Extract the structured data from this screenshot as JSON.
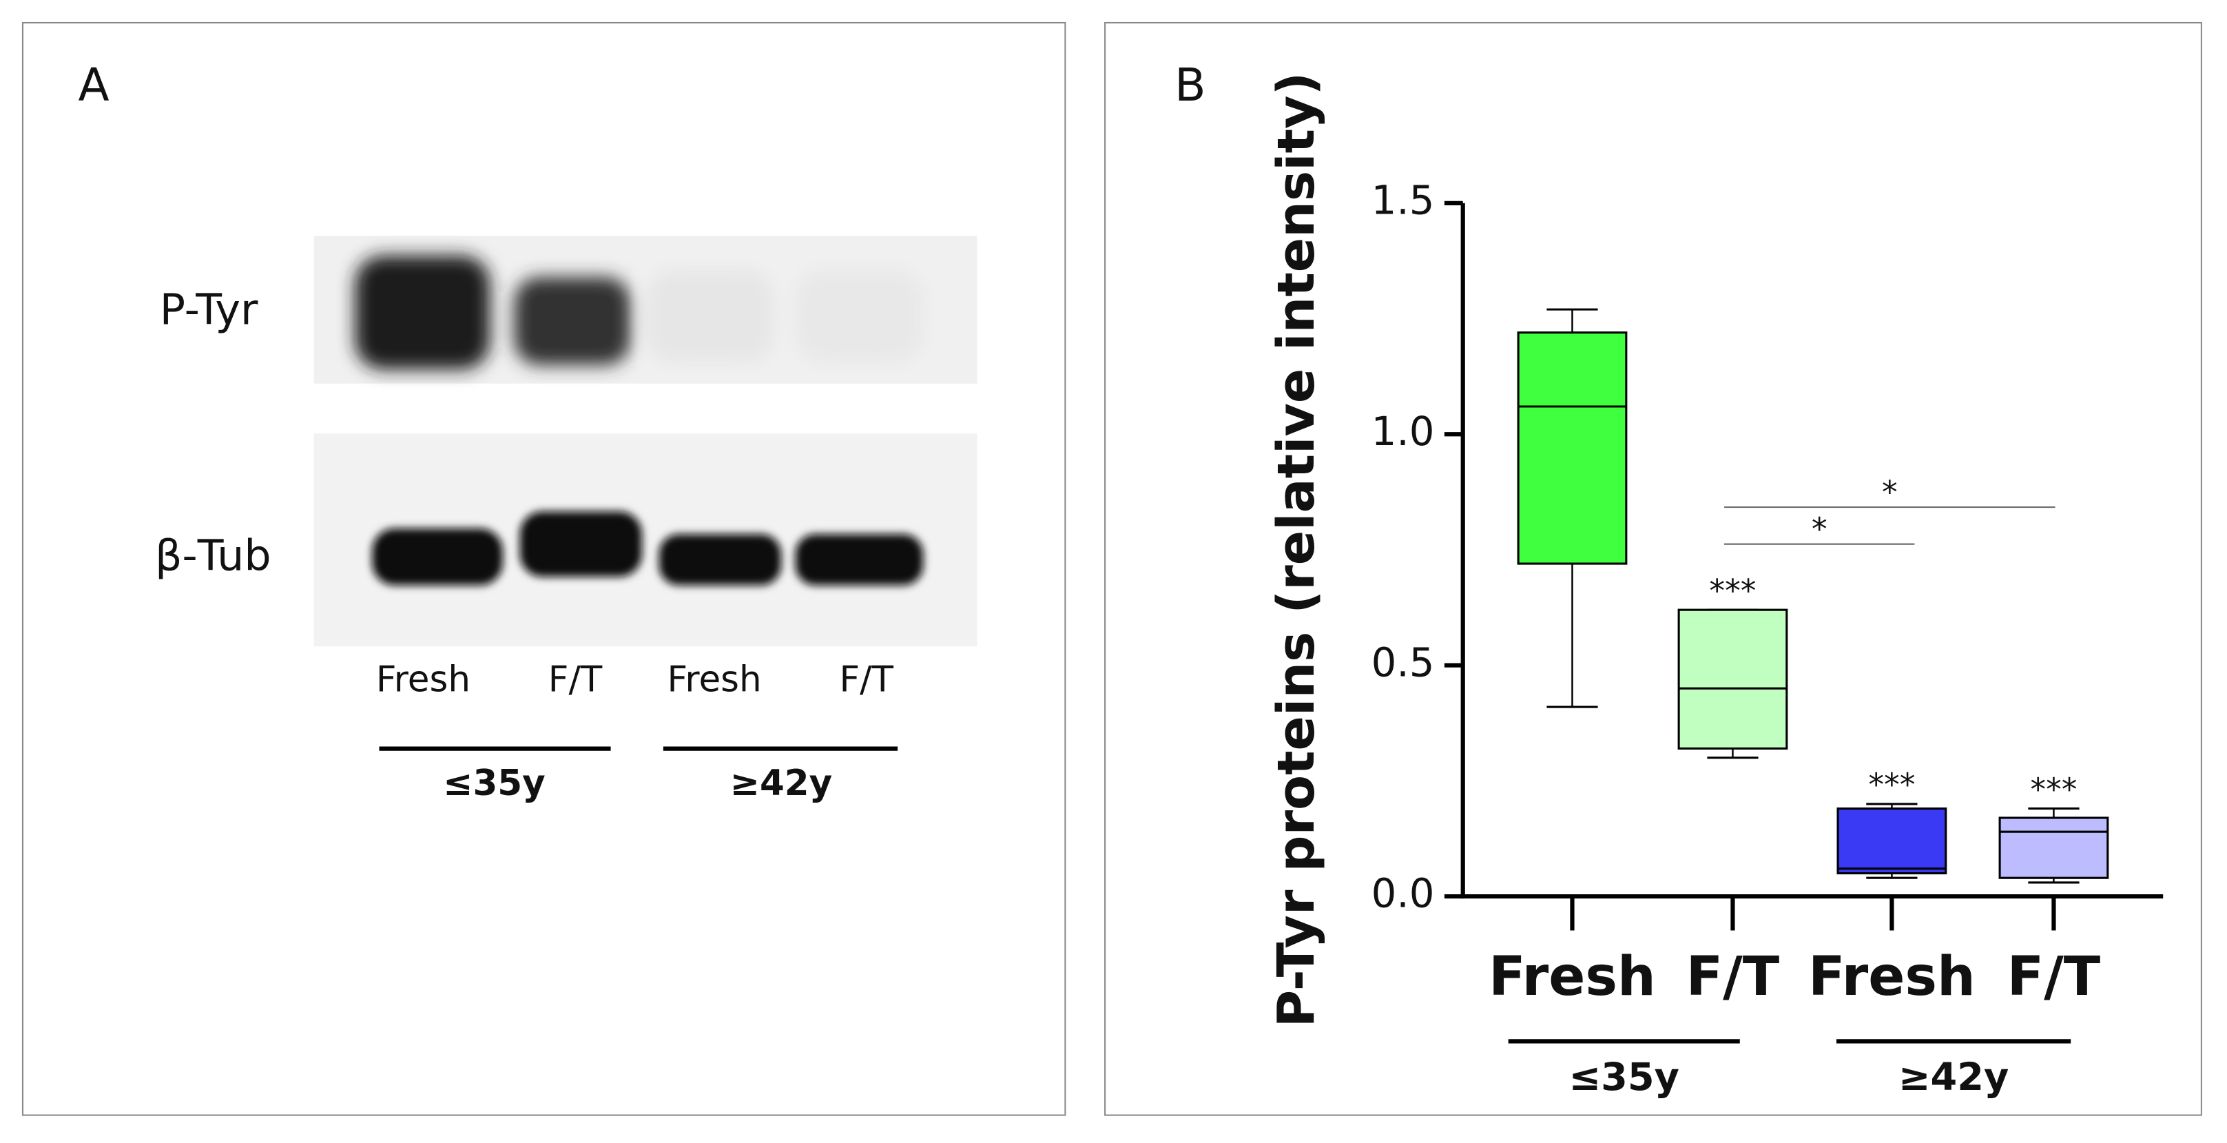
{
  "panel_a": {
    "letter": "A",
    "rows": [
      "P-Tyr",
      "β-Tub"
    ],
    "lanes": [
      "Fresh",
      "F/T",
      "Fresh",
      "F/T"
    ],
    "groups": [
      "≤35y",
      "≥42y"
    ]
  },
  "chart_data": {
    "type": "box",
    "letter": "B",
    "y_label": "P-Tyr proteins (relative intensity)",
    "categories": [
      "Fresh",
      "F/T",
      "Fresh",
      "F/T"
    ],
    "groups": [
      "≤35y",
      "≥42y"
    ],
    "ylim": [
      0,
      1.5
    ],
    "yticks": [
      {
        "value": 0,
        "label": "0.0"
      },
      {
        "value": 0.5,
        "label": "0.5"
      },
      {
        "value": 1,
        "label": "1.0"
      },
      {
        "value": 1.5,
        "label": "1.5"
      }
    ],
    "boxes": [
      {
        "min": 0.41,
        "q1": 0.72,
        "median": 1.06,
        "q3": 1.22,
        "max": 1.27,
        "color": "#3fff3f"
      },
      {
        "min": 0.3,
        "q1": 0.32,
        "median": 0.45,
        "q3": 0.62,
        "max": 0.62,
        "color": "#c0ffc0",
        "label": "***"
      },
      {
        "min": 0.04,
        "q1": 0.05,
        "median": 0.06,
        "q3": 0.19,
        "max": 0.2,
        "color": "#3a3af5",
        "label": "***"
      },
      {
        "min": 0.03,
        "q1": 0.04,
        "median": 0.14,
        "q3": 0.17,
        "max": 0.19,
        "color": "#bcbcff",
        "label": "***"
      }
    ],
    "annotations": [
      "*",
      "*"
    ]
  }
}
